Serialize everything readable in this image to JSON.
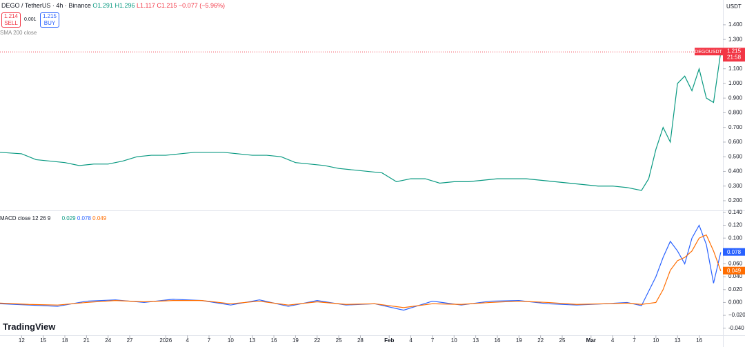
{
  "header": {
    "symbol": "DEGO / TetherUS · 4h · Binance",
    "open": "O1.291",
    "high": "H1.296",
    "low": "L1.117",
    "close": "C1.215",
    "change": "−0.077 (−5.96%)",
    "sell_price": "1.214",
    "sell": "SELL",
    "spread": "0.001",
    "buy_price": "1.215",
    "buy": "BUY",
    "indicator": "SMA 200 close",
    "currency": "USDT",
    "logo": "TradingView"
  },
  "chart_data": [
    {
      "type": "line",
      "title": "DEGOUSDT",
      "last_label": "1.215",
      "countdown": "21:58",
      "x": [
        -3,
        0,
        2,
        4,
        6,
        8,
        10,
        12,
        14,
        16,
        18,
        20,
        22,
        24,
        26,
        28,
        30,
        32,
        34,
        36,
        38,
        40,
        42,
        44,
        46,
        48,
        50,
        52,
        54,
        56,
        58,
        60,
        62,
        64,
        66,
        68,
        70,
        72,
        74,
        76,
        78,
        80,
        82,
        84,
        86,
        87,
        88,
        89,
        90,
        91,
        92,
        93,
        94,
        95,
        96,
        97
      ],
      "series": [
        {
          "name": "DEGOUSDT",
          "color": "#089981",
          "values": [
            0.53,
            0.52,
            0.48,
            0.47,
            0.46,
            0.44,
            0.45,
            0.45,
            0.47,
            0.5,
            0.51,
            0.51,
            0.52,
            0.53,
            0.53,
            0.53,
            0.52,
            0.51,
            0.51,
            0.5,
            0.46,
            0.45,
            0.44,
            0.42,
            0.41,
            0.4,
            0.39,
            0.33,
            0.35,
            0.35,
            0.32,
            0.33,
            0.33,
            0.34,
            0.35,
            0.35,
            0.35,
            0.34,
            0.33,
            0.32,
            0.31,
            0.3,
            0.3,
            0.29,
            0.27,
            0.35,
            0.55,
            0.7,
            0.6,
            1.0,
            1.05,
            0.95,
            1.1,
            0.9,
            0.87,
            1.215
          ]
        }
      ],
      "xlim": [
        -3,
        97.3
      ],
      "ylim": [
        0.134,
        1.569
      ],
      "yticks": [
        {
          "value": 0.2,
          "label": "0.200"
        },
        {
          "value": 0.3,
          "label": "0.300"
        },
        {
          "value": 0.4,
          "label": "0.400"
        },
        {
          "value": 0.5,
          "label": "0.500"
        },
        {
          "value": 0.6,
          "label": "0.600"
        },
        {
          "value": 0.7,
          "label": "0.700"
        },
        {
          "value": 0.8,
          "label": "0.800"
        },
        {
          "value": 0.9,
          "label": "0.900"
        },
        {
          "value": 1.0,
          "label": "1.000"
        },
        {
          "value": 1.1,
          "label": "1.100"
        },
        {
          "value": 1.2,
          "label": "1.200"
        },
        {
          "value": 1.3,
          "label": "1.300"
        },
        {
          "value": 1.4,
          "label": "1.400"
        }
      ]
    },
    {
      "type": "line",
      "title": "MACD close 12 26 9",
      "value_labels": [
        "0.029",
        "0.078",
        "0.049"
      ],
      "x": [
        -3,
        1,
        5,
        9,
        13,
        17,
        21,
        25,
        29,
        33,
        37,
        41,
        45,
        49,
        53,
        57,
        61,
        65,
        69,
        73,
        77,
        81,
        84,
        86,
        88,
        89,
        90,
        91,
        92,
        93,
        94,
        95,
        96,
        97
      ],
      "series": [
        {
          "name": "MACD",
          "color": "#2962ff",
          "values": [
            -0.002,
            -0.004,
            -0.006,
            0.002,
            0.004,
            0.0,
            0.005,
            0.003,
            -0.004,
            0.004,
            -0.006,
            0.003,
            -0.004,
            -0.002,
            -0.012,
            0.002,
            -0.004,
            0.002,
            0.003,
            -0.002,
            -0.004,
            -0.002,
            0.0,
            -0.005,
            0.04,
            0.07,
            0.095,
            0.08,
            0.06,
            0.1,
            0.12,
            0.09,
            0.03,
            0.078
          ]
        },
        {
          "name": "Signal",
          "color": "#ff6d00",
          "values": [
            -0.001,
            -0.003,
            -0.004,
            0.0,
            0.003,
            0.001,
            0.003,
            0.003,
            -0.002,
            0.002,
            -0.004,
            0.001,
            -0.003,
            -0.002,
            -0.008,
            -0.002,
            -0.003,
            0.0,
            0.002,
            0.0,
            -0.003,
            -0.002,
            -0.001,
            -0.003,
            0.0,
            0.02,
            0.05,
            0.065,
            0.07,
            0.08,
            0.1,
            0.105,
            0.08,
            0.049
          ]
        }
      ],
      "xlim": [
        -3,
        97.3
      ],
      "ylim": [
        -0.051,
        0.142
      ],
      "yticks": [
        {
          "value": -0.04,
          "label": "-0.040"
        },
        {
          "value": -0.02,
          "label": "−0.020"
        },
        {
          "value": 0,
          "label": "0.000"
        },
        {
          "value": 0.02,
          "label": "0.020"
        },
        {
          "value": 0.04,
          "label": "0.040"
        },
        {
          "value": 0.06,
          "label": "0.060"
        },
        {
          "value": 0.08,
          "label": "0.080"
        },
        {
          "value": 0.1,
          "label": "0.100"
        },
        {
          "value": 0.12,
          "label": "0.120"
        },
        {
          "value": 0.14,
          "label": "0.140"
        }
      ],
      "xticks": [
        {
          "value": 0,
          "label": "12"
        },
        {
          "value": 3,
          "label": "15"
        },
        {
          "value": 6,
          "label": "18"
        },
        {
          "value": 9,
          "label": "21"
        },
        {
          "value": 12,
          "label": "24"
        },
        {
          "value": 15,
          "label": "27"
        },
        {
          "value": 20,
          "label": "2026"
        },
        {
          "value": 23,
          "label": "4"
        },
        {
          "value": 26,
          "label": "7"
        },
        {
          "value": 29,
          "label": "10"
        },
        {
          "value": 32,
          "label": "13"
        },
        {
          "value": 35,
          "label": "16"
        },
        {
          "value": 38,
          "label": "19"
        },
        {
          "value": 41,
          "label": "22"
        },
        {
          "value": 44,
          "label": "25"
        },
        {
          "value": 47,
          "label": "28"
        },
        {
          "value": 51,
          "label": "Feb"
        },
        {
          "value": 54,
          "label": "4"
        },
        {
          "value": 57,
          "label": "7"
        },
        {
          "value": 60,
          "label": "10"
        },
        {
          "value": 63,
          "label": "13"
        },
        {
          "value": 66,
          "label": "16"
        },
        {
          "value": 69,
          "label": "19"
        },
        {
          "value": 72,
          "label": "22"
        },
        {
          "value": 75,
          "label": "25"
        },
        {
          "value": 79,
          "label": "Mar"
        },
        {
          "value": 82,
          "label": "4"
        },
        {
          "value": 85,
          "label": "7"
        },
        {
          "value": 88,
          "label": "10"
        },
        {
          "value": 91,
          "label": "13"
        },
        {
          "value": 94,
          "label": "16"
        }
      ]
    }
  ]
}
